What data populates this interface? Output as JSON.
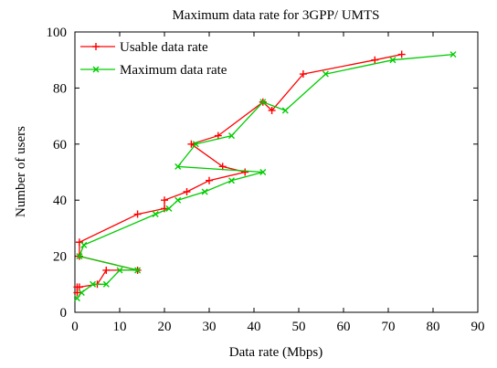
{
  "chart_data": {
    "type": "line",
    "title": "Maximum data rate for 3GPP/ UMTS",
    "xlabel": "Data rate (Mbps)",
    "ylabel": "Number of users",
    "xlim": [
      0,
      90
    ],
    "ylim": [
      0,
      100
    ],
    "xticks": [
      0,
      10,
      20,
      30,
      40,
      50,
      60,
      70,
      80,
      90
    ],
    "yticks": [
      0,
      20,
      40,
      60,
      80,
      100
    ],
    "grid": false,
    "legend_position": "top-left",
    "series": [
      {
        "name": "Usable data rate",
        "color": "#ff0000",
        "marker": "plus",
        "x": [
          0.5,
          0.5,
          1,
          5,
          7,
          14,
          1,
          1,
          14,
          20,
          20,
          25,
          30,
          38,
          33,
          26,
          32,
          42,
          44,
          51,
          67,
          73
        ],
        "y": [
          7,
          9,
          9,
          10,
          15,
          15,
          20,
          25,
          35,
          37,
          40,
          43,
          47,
          50,
          52,
          60,
          63,
          75,
          72,
          85,
          90,
          92
        ]
      },
      {
        "name": "Maximum data rate",
        "color": "#00cc00",
        "marker": "x",
        "x": [
          0.5,
          1.5,
          4,
          7,
          10,
          14,
          1,
          2,
          18,
          21,
          23,
          29,
          35,
          42,
          23,
          27,
          35,
          42,
          47,
          56,
          71,
          84.5
        ],
        "y": [
          5,
          7,
          10,
          10,
          15,
          15,
          20,
          24,
          35,
          37,
          40,
          43,
          47,
          50,
          52,
          60,
          63,
          75,
          72,
          85,
          90,
          92
        ]
      }
    ]
  }
}
